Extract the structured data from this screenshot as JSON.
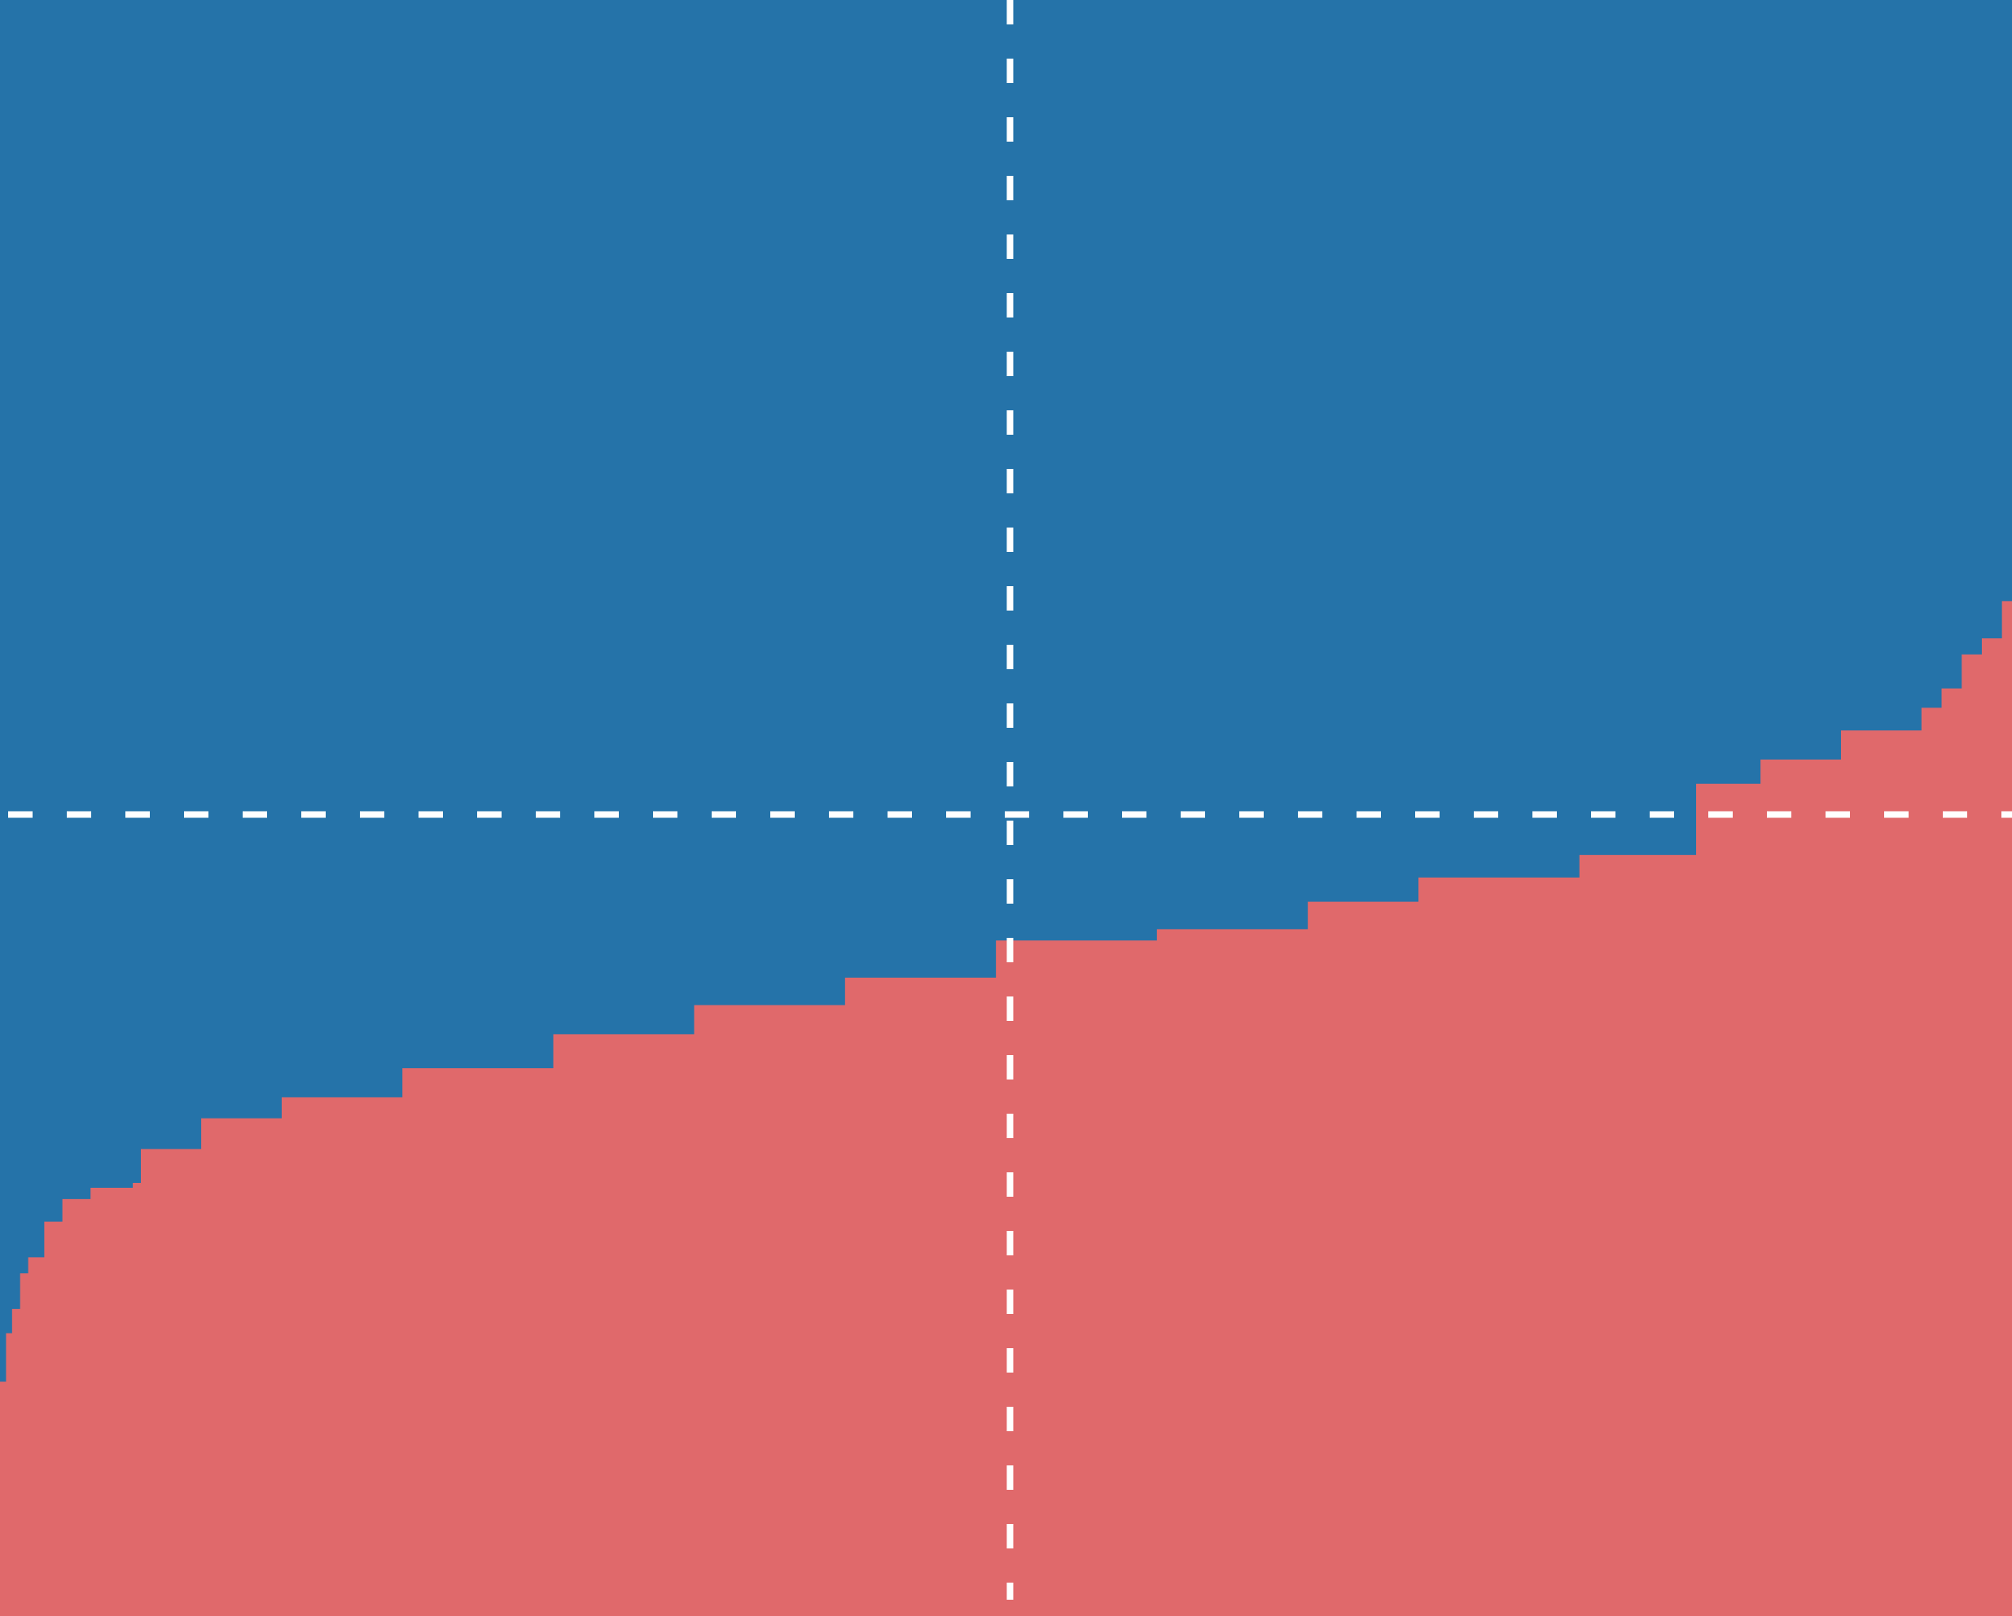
{
  "colors": {
    "upper_fill": "#2573a9",
    "lower_fill": "#e0696b",
    "reference_line": "#ffffff"
  },
  "chart_data": {
    "type": "area",
    "title": "",
    "xlabel": "",
    "ylabel": "",
    "xlim": [
      0,
      1
    ],
    "ylim": [
      0,
      1
    ],
    "grid": false,
    "legend": "none",
    "series": [
      {
        "fill": "#e0696b",
        "x": [
          0.0,
          0.003,
          0.006,
          0.01,
          0.014,
          0.022,
          0.031,
          0.04,
          0.045,
          0.066,
          0.07,
          0.1,
          0.14,
          0.196,
          0.2,
          0.27,
          0.275,
          0.34,
          0.345,
          0.415,
          0.42,
          0.49,
          0.495,
          0.57,
          0.575,
          0.645,
          0.65,
          0.7,
          0.705,
          0.78,
          0.785,
          0.838,
          0.843,
          0.87,
          0.875,
          0.91,
          0.915,
          0.945,
          0.955,
          0.965,
          0.975,
          0.985,
          0.995,
          1.0
        ],
        "y": [
          0.145,
          0.175,
          0.19,
          0.212,
          0.222,
          0.244,
          0.258,
          0.258,
          0.265,
          0.268,
          0.289,
          0.308,
          0.321,
          0.321,
          0.339,
          0.339,
          0.36,
          0.36,
          0.378,
          0.378,
          0.395,
          0.395,
          0.418,
          0.418,
          0.425,
          0.425,
          0.442,
          0.442,
          0.457,
          0.457,
          0.471,
          0.471,
          0.515,
          0.515,
          0.53,
          0.53,
          0.548,
          0.548,
          0.562,
          0.574,
          0.595,
          0.605,
          0.628,
          0.652
        ]
      }
    ],
    "reference_lines": [
      {
        "orientation": "horizontal",
        "value": 0.496
      },
      {
        "orientation": "vertical",
        "value": 0.502
      }
    ]
  }
}
